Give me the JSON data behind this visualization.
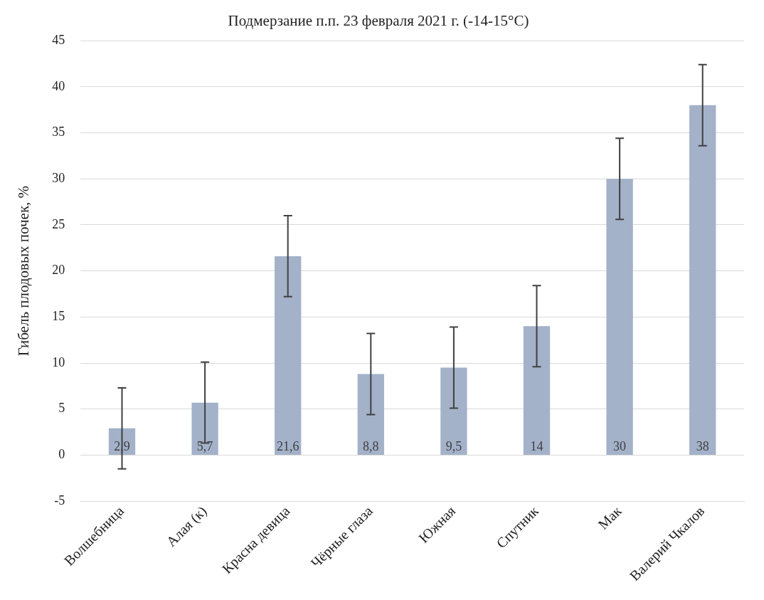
{
  "chart_data": {
    "type": "bar",
    "title": "Подмерзание п.п. 23 февраля 2021 г. (-14-15°С)",
    "ylabel": "Гибель плодовых почек, %",
    "categories": [
      "Волшебница",
      "Алая (к)",
      "Красна девица",
      "Чёрные глаза",
      "Южная",
      "Спутник",
      "Мак",
      "Валерий Чкалов"
    ],
    "values": [
      2.9,
      5.7,
      21.6,
      8.8,
      9.5,
      14,
      30,
      38
    ],
    "value_labels": [
      "2,9",
      "5,7",
      "21,6",
      "8,8",
      "9,5",
      "14",
      "30",
      "38"
    ],
    "errors": [
      4.4,
      4.4,
      4.4,
      4.4,
      4.4,
      4.4,
      4.4,
      4.4
    ],
    "color": "#a3b1c9",
    "ylim": [
      -5,
      45
    ],
    "yticks": [
      -5,
      0,
      5,
      10,
      15,
      20,
      25,
      30,
      35,
      40,
      45
    ],
    "grid": "y"
  }
}
